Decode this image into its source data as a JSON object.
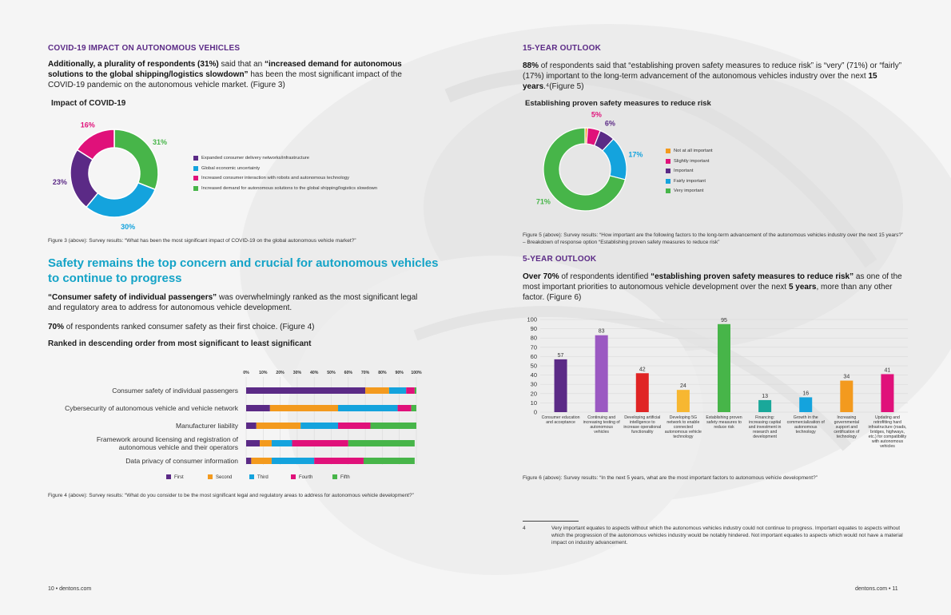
{
  "left": {
    "heading": "COVID-19 IMPACT ON AUTONOMOUS VEHICLES",
    "p1_bold_a": "Additionally, a plurality of respondents (31%)",
    "p1_mid": " said that an ",
    "p1_bold_b": "“increased demand for autonomous solutions to the global shipping/logistics slowdown”",
    "p1_end": " has been the most significant impact of the COVID-19 pandemic on the autonomous vehicle market. (Figure 3)",
    "fig3_caption": "Figure 3 (above): Survey results: “What has been the most significant impact of COVID-19 on the global autonomous vehicle market?”",
    "big_heading": "Safety remains the top concern and crucial for autonomous vehicles to continue to progress",
    "p2_bold": "“Consumer safety of individual passengers”",
    "p2_end": " was overwhelmingly ranked as the most significant legal and regulatory area to address for autonomous vehicle development.",
    "p3_bold": "70%",
    "p3_end": " of respondents ranked consumer safety as their first choice. (Figure 4)",
    "ranked_title": "Ranked in descending order from most significant to least significant",
    "fig4_caption": "Figure 4 (above): Survey results: “What do you consider to be the most significant legal and regulatory areas to address for autonomous vehicle development?”",
    "footer": "10  •  dentons.com"
  },
  "right": {
    "heading15": "15-YEAR OUTLOOK",
    "p15_a": "88%",
    "p15_b": " of respondents said that “establishing proven safety measures to reduce risk” is “very” (71%) or “fairly” (17%) important to the long-term advancement of the autonomous vehicles industry over the next ",
    "p15_c": "15 years",
    "p15_d": ".⁴(Figure 5)",
    "fig5_caption": "Figure 5 (above): Survey results: “How important are the following factors to the long-term advancement of the autonomous vehicles industry over the next 15 years?” – Breakdown of response option “Establishing proven safety measures to reduce risk”",
    "heading5": "5-YEAR OUTLOOK",
    "p5_a": "Over 70%",
    "p5_b": " of respondents identified ",
    "p5_c": "“establishing proven safety measures to reduce risk”",
    "p5_d": " as one of the most important priorities to autonomous vehicle development over the next ",
    "p5_e": "5 years",
    "p5_f": ", more than any other factor. (Figure 6)",
    "fig6_caption": "Figure 6 (above): Survey results: “In the next 5 years, what are the most important factors to autonomous vehicle development?”",
    "footnote_num": "4",
    "footnote_text": "Very important equates to aspects without which the autonomous vehicles industry could not continue to progress. Important equates to aspects without which the progression of the autonomous vehicles industry would be notably hindered. Not important equates to aspects which would not have a material impact on industry advancement.",
    "footer": "dentons.com  •  11"
  },
  "chart_data": [
    {
      "type": "pie",
      "title": "Impact of COVID-19",
      "categories": [
        "Expanded consumer delivery networks/infrastructure",
        "Global economic uncertainty",
        "Increased consumer interaction with robots and autonomous technology",
        "Increased demand for autonomous solutions to the global shipping/logistics slowdown"
      ],
      "values": [
        23,
        30,
        16,
        31
      ],
      "labels": [
        "23%",
        "30%",
        "16%",
        "31%"
      ],
      "colors": [
        "#5b2a86",
        "#14a3dd",
        "#e0117a",
        "#47b549"
      ]
    },
    {
      "type": "bar",
      "title": "Ranked in descending order from most significant to least significant",
      "orientation": "horizontal-stacked",
      "categories": [
        "Consumer safety of individual passengers",
        "Cybersecurity of autonomous vehicle and vehicle network",
        "Manufacturer liability",
        "Framework around licensing and registration of autonomous vehicle and their operators",
        "Data privacy of consumer information"
      ],
      "series": [
        {
          "name": "First",
          "color": "#5b2a86",
          "values": [
            70,
            14,
            6,
            8,
            3
          ]
        },
        {
          "name": "Second",
          "color": "#f39a1e",
          "values": [
            14,
            40,
            26,
            7,
            12
          ]
        },
        {
          "name": "Third",
          "color": "#14a3dd",
          "values": [
            10,
            35,
            22,
            12,
            25
          ]
        },
        {
          "name": "Fourth",
          "color": "#e0117a",
          "values": [
            5,
            8,
            19,
            33,
            29
          ]
        },
        {
          "name": "Fifth",
          "color": "#47b549",
          "values": [
            1,
            3,
            27,
            39,
            30
          ]
        }
      ],
      "xticks": [
        "0%",
        "10%",
        "20%",
        "30%",
        "40%",
        "50%",
        "60%",
        "70%",
        "80%",
        "90%",
        "100%"
      ],
      "xlim": [
        0,
        100
      ]
    },
    {
      "type": "pie",
      "title": "Establishing proven safety measures to reduce risk",
      "categories": [
        "Not at all important",
        "Slightly important",
        "Important",
        "Fairly important",
        "Very important"
      ],
      "values": [
        1,
        5,
        6,
        17,
        71
      ],
      "labels": [
        "",
        "5%",
        "6%",
        "17%",
        "71%"
      ],
      "colors": [
        "#f39a1e",
        "#e0117a",
        "#5b2a86",
        "#14a3dd",
        "#47b549"
      ]
    },
    {
      "type": "bar",
      "title": "",
      "categories": [
        "Consumer education and acceptance",
        "Continuing and increasing testing of autonomous vehicles",
        "Developing artificial intelligence to increase operational functionality",
        "Developing 5G network to enable connected autonomous vehicle technology",
        "Establishing proven safety measures to reduce risk",
        "Financing: increasing capital and investment in research and development",
        "Growth in the commercialization of autonomous technology",
        "Increasing governmental support and certification of technology",
        "Updating and retrofitting hard infrastructure (roads, bridges, highways, etc.) for compatibility with autonomous vehicles"
      ],
      "values": [
        57,
        83,
        42,
        24,
        95,
        13,
        16,
        34,
        41
      ],
      "colors": [
        "#5b2a86",
        "#9b59c2",
        "#e02424",
        "#f7b731",
        "#47b549",
        "#1aa89a",
        "#14a3dd",
        "#f39a1e",
        "#e0117a"
      ],
      "yticks": [
        "0",
        "10",
        "20",
        "30",
        "40",
        "50",
        "60",
        "70",
        "80",
        "90",
        "100"
      ],
      "ylim": [
        0,
        100
      ]
    }
  ]
}
